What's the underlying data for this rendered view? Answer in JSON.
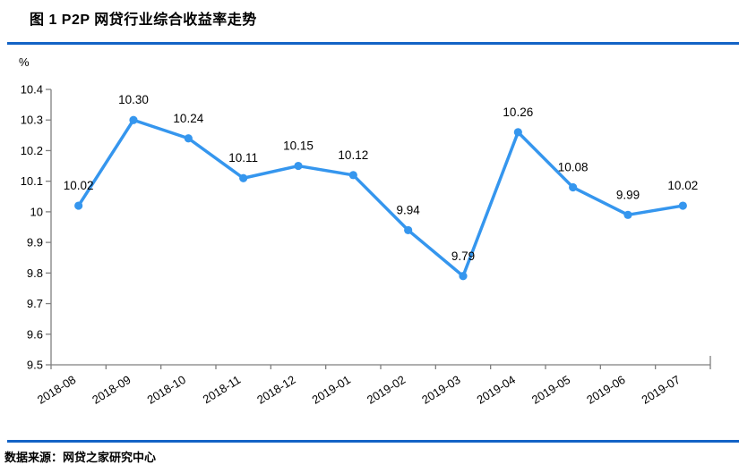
{
  "header": {
    "title": "图 1  P2P 网贷行业综合收益率走势"
  },
  "footer": {
    "source": "数据来源：网贷之家研究中心"
  },
  "colors": {
    "divider_blue": "#1363c6",
    "line_blue": "#3596ee",
    "axis_gray": "#7f7f7f",
    "text_black": "#000000"
  },
  "chart_data": {
    "type": "line",
    "title": "P2P网贷行业综合收益率走势",
    "unit_label": "%",
    "categories": [
      "2018-08",
      "2018-09",
      "2018-10",
      "2018-11",
      "2018-12",
      "2019-01",
      "2019-02",
      "2019-03",
      "2019-04",
      "2019-05",
      "2019-06",
      "2019-07"
    ],
    "series": [
      {
        "name": "综合收益率",
        "values": [
          10.02,
          10.3,
          10.24,
          10.11,
          10.15,
          10.12,
          9.94,
          9.79,
          10.26,
          10.08,
          9.99,
          10.02
        ]
      }
    ],
    "data_labels": true,
    "xlabel": "",
    "ylabel": "%",
    "ylim": [
      9.5,
      10.4
    ],
    "yticks": [
      10.4,
      10.3,
      10.2,
      10.1,
      10,
      9.9,
      9.8,
      9.7,
      9.6,
      9.5
    ],
    "grid": false,
    "legend_position": "none",
    "x_label_rotation_deg": -32
  }
}
